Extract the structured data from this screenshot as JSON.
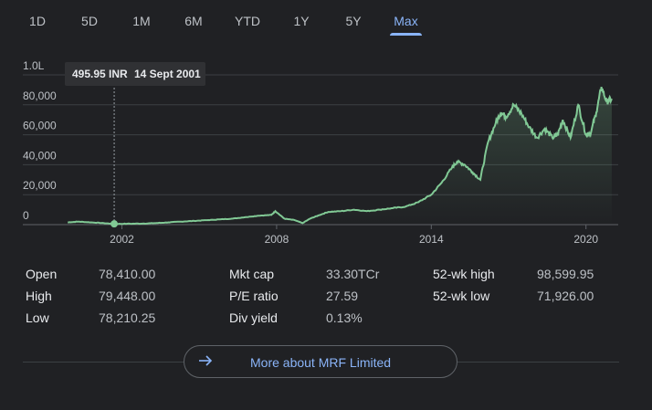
{
  "tabs": [
    {
      "label": "1D",
      "active": false
    },
    {
      "label": "5D",
      "active": false
    },
    {
      "label": "1M",
      "active": false
    },
    {
      "label": "6M",
      "active": false
    },
    {
      "label": "YTD",
      "active": false
    },
    {
      "label": "1Y",
      "active": false
    },
    {
      "label": "5Y",
      "active": false
    },
    {
      "label": "Max",
      "active": true
    }
  ],
  "tooltip": {
    "price": "495.95 INR",
    "date": "14 Sept 2001"
  },
  "stats": {
    "open": {
      "label": "Open",
      "value": "78,410.00"
    },
    "high": {
      "label": "High",
      "value": "79,448.00"
    },
    "low": {
      "label": "Low",
      "value": "78,210.25"
    },
    "mkt_cap": {
      "label": "Mkt cap",
      "value": "33.30TCr"
    },
    "pe_ratio": {
      "label": "P/E ratio",
      "value": "27.59"
    },
    "div_yield": {
      "label": "Div yield",
      "value": "0.13%"
    },
    "wk52_high": {
      "label": "52-wk high",
      "value": "98,599.95"
    },
    "wk52_low": {
      "label": "52-wk low",
      "value": "71,926.00"
    }
  },
  "more_button": {
    "label": "More about MRF Limited"
  },
  "colors": {
    "line": "#81c995",
    "accent": "#8ab4f8",
    "grid": "#3c4043"
  },
  "chart_data": {
    "type": "line",
    "y_tick_labels": [
      "0",
      "20,000",
      "40,000",
      "60,000",
      "80,000",
      "1.0L"
    ],
    "y_ticks": [
      0,
      20000,
      40000,
      60000,
      80000,
      100000
    ],
    "x_tick_labels": [
      "2002",
      "2008",
      "2014",
      "2020"
    ],
    "x_ticks": [
      2002,
      2008,
      2014,
      2020
    ],
    "xlim": [
      1999.75,
      2021.25
    ],
    "ylim": [
      0,
      100000
    ],
    "highlight": {
      "x": 2001.7,
      "y": 495.95
    },
    "series": [
      {
        "x": [
          1999.9,
          2000.3,
          2000.8,
          2001.3,
          2001.7,
          2002.2,
          2002.8,
          2003.3,
          2003.8,
          2004.3,
          2004.8,
          2005.3,
          2005.8,
          2006.3,
          2006.8,
          2007.3,
          2007.8,
          2007.95,
          2008.3,
          2008.7,
          2009.0,
          2009.3,
          2009.6,
          2010.0,
          2010.5,
          2011.0,
          2011.5,
          2012.0,
          2012.5,
          2013.0,
          2013.5,
          2014.0,
          2014.4,
          2014.8,
          2015.0,
          2015.3,
          2015.6,
          2015.9,
          2016.2,
          2016.5,
          2016.7,
          2016.9,
          2017.2,
          2017.5,
          2017.8,
          2018.1,
          2018.4,
          2018.7,
          2018.9,
          2019.1,
          2019.4,
          2019.7,
          2020.0,
          2020.2,
          2020.4,
          2020.6,
          2020.8,
          2021.0
        ],
        "y": [
          1500,
          2000,
          1500,
          1000,
          496,
          600,
          700,
          1000,
          1500,
          2000,
          2500,
          3000,
          3500,
          4000,
          5000,
          6000,
          6500,
          9000,
          4000,
          3000,
          1000,
          4000,
          6000,
          8500,
          9000,
          10000,
          9000,
          10000,
          11000,
          12000,
          15000,
          20000,
          28000,
          38000,
          42000,
          40000,
          35000,
          30000,
          55000,
          68000,
          75000,
          72000,
          80000,
          74000,
          65000,
          58000,
          64000,
          58000,
          60000,
          70000,
          58000,
          80000,
          60000,
          62000,
          75000,
          92000,
          82000,
          84000
        ]
      }
    ]
  }
}
